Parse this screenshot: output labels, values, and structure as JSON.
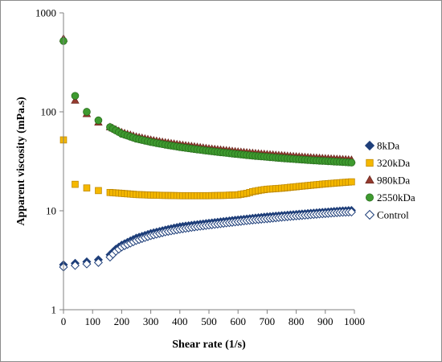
{
  "chart_data": {
    "type": "scatter",
    "title": "",
    "xlabel": "Shear rate (1/s)",
    "ylabel": "Apparent viscosity (mPa.s)",
    "xlim": [
      0,
      1000
    ],
    "ylim": [
      1,
      1000
    ],
    "yscale": "log",
    "x_ticks": [
      "0",
      "100",
      "200",
      "300",
      "400",
      "500",
      "600",
      "700",
      "800",
      "900",
      "1000"
    ],
    "y_ticks": [
      "1",
      "10",
      "100",
      "1000"
    ],
    "grid": false,
    "legend_position": "right",
    "series": [
      {
        "name": "8kDa",
        "marker": "diamond",
        "color": "#1f3f7a",
        "outline": "#1f3f7a",
        "filled": true,
        "points": [
          [
            0,
            2.85
          ],
          [
            40,
            2.95
          ],
          [
            80,
            3.05
          ],
          [
            120,
            3.2
          ],
          [
            160,
            3.6
          ],
          [
            180,
            4.1
          ],
          [
            200,
            4.5
          ],
          [
            250,
            5.3
          ],
          [
            300,
            5.9
          ],
          [
            350,
            6.4
          ],
          [
            400,
            6.9
          ],
          [
            450,
            7.2
          ],
          [
            500,
            7.5
          ],
          [
            550,
            7.8
          ],
          [
            600,
            8.1
          ],
          [
            650,
            8.4
          ],
          [
            700,
            8.7
          ],
          [
            750,
            8.95
          ],
          [
            800,
            9.2
          ],
          [
            850,
            9.45
          ],
          [
            900,
            9.7
          ],
          [
            950,
            9.95
          ],
          [
            990,
            10.1
          ]
        ]
      },
      {
        "name": "320kDa",
        "marker": "square",
        "color": "#f5b800",
        "outline": "#c08a00",
        "filled": true,
        "points": [
          [
            0,
            52
          ],
          [
            40,
            18.5
          ],
          [
            80,
            17
          ],
          [
            120,
            16
          ],
          [
            160,
            15.3
          ],
          [
            200,
            15
          ],
          [
            250,
            14.6
          ],
          [
            300,
            14.4
          ],
          [
            350,
            14.3
          ],
          [
            400,
            14.2
          ],
          [
            450,
            14.2
          ],
          [
            500,
            14.2
          ],
          [
            550,
            14.3
          ],
          [
            600,
            14.5
          ],
          [
            630,
            15.0
          ],
          [
            650,
            15.6
          ],
          [
            680,
            16.2
          ],
          [
            700,
            16.5
          ],
          [
            750,
            16.9
          ],
          [
            800,
            17.5
          ],
          [
            850,
            18.1
          ],
          [
            900,
            18.7
          ],
          [
            950,
            19.2
          ],
          [
            990,
            19.6
          ]
        ]
      },
      {
        "name": "980kDa",
        "marker": "triangle",
        "color": "#943a2e",
        "outline": "#6e2a20",
        "filled": true,
        "points": [
          [
            0,
            550
          ],
          [
            40,
            130
          ],
          [
            80,
            95
          ],
          [
            120,
            78
          ],
          [
            160,
            70
          ],
          [
            200,
            62
          ],
          [
            250,
            56
          ],
          [
            300,
            52
          ],
          [
            350,
            49
          ],
          [
            400,
            46.5
          ],
          [
            450,
            44.5
          ],
          [
            500,
            42.5
          ],
          [
            550,
            41
          ],
          [
            600,
            39.5
          ],
          [
            650,
            38.3
          ],
          [
            700,
            37.2
          ],
          [
            750,
            36.2
          ],
          [
            800,
            35.3
          ],
          [
            850,
            34.5
          ],
          [
            900,
            33.8
          ],
          [
            950,
            33.2
          ],
          [
            990,
            32.7
          ]
        ]
      },
      {
        "name": "2550kDa",
        "marker": "circle",
        "color": "#3e9a2f",
        "outline": "#2a6e1e",
        "filled": true,
        "points": [
          [
            0,
            520
          ],
          [
            40,
            145
          ],
          [
            80,
            100
          ],
          [
            120,
            82
          ],
          [
            160,
            70
          ],
          [
            200,
            60
          ],
          [
            250,
            53.5
          ],
          [
            300,
            49.5
          ],
          [
            350,
            46.5
          ],
          [
            400,
            44
          ],
          [
            450,
            42
          ],
          [
            500,
            40.2
          ],
          [
            550,
            38.7
          ],
          [
            600,
            37.3
          ],
          [
            650,
            36
          ],
          [
            700,
            35
          ],
          [
            750,
            34
          ],
          [
            800,
            33.2
          ],
          [
            850,
            32.4
          ],
          [
            900,
            31.8
          ],
          [
            950,
            31.2
          ],
          [
            990,
            30.7
          ]
        ]
      },
      {
        "name": "Control",
        "marker": "diamond",
        "color": "#ffffff",
        "outline": "#1f3f7a",
        "filled": false,
        "points": [
          [
            0,
            2.7
          ],
          [
            40,
            2.8
          ],
          [
            80,
            2.9
          ],
          [
            120,
            3.0
          ],
          [
            160,
            3.4
          ],
          [
            180,
            3.9
          ],
          [
            200,
            4.3
          ],
          [
            250,
            5.0
          ],
          [
            300,
            5.6
          ],
          [
            350,
            6.1
          ],
          [
            400,
            6.5
          ],
          [
            450,
            6.85
          ],
          [
            500,
            7.15
          ],
          [
            550,
            7.45
          ],
          [
            600,
            7.75
          ],
          [
            650,
            8.05
          ],
          [
            700,
            8.3
          ],
          [
            750,
            8.6
          ],
          [
            800,
            8.85
          ],
          [
            850,
            9.1
          ],
          [
            900,
            9.35
          ],
          [
            950,
            9.6
          ],
          [
            990,
            9.7
          ]
        ]
      }
    ]
  }
}
